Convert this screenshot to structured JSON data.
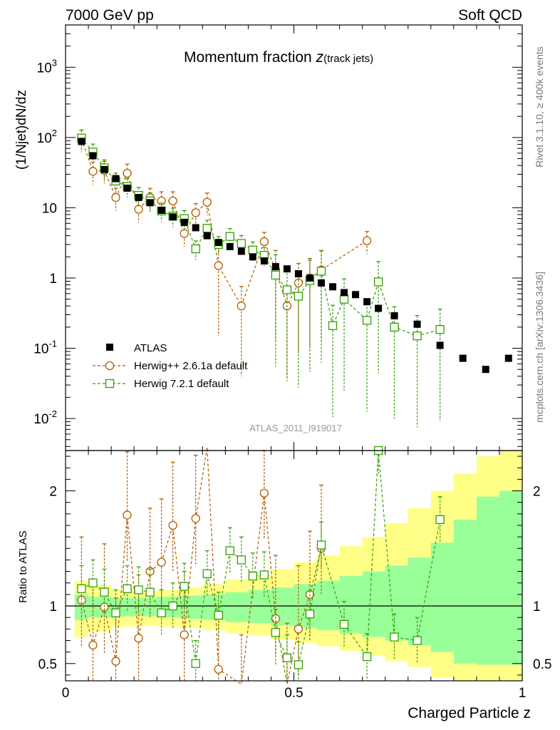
{
  "header": {
    "left": "7000 GeV pp",
    "right": "Soft QCD"
  },
  "side_labels": {
    "rivet": "Rivet 3.1.10, ≥ 400k events",
    "ref": "mcplots.cern.ch [arXiv:1306.3436]"
  },
  "chart_data": {
    "type": "scatter",
    "title_main": "Momentum fraction ",
    "title_sym": "z",
    "title_sub": "(track jets)",
    "watermark": "ATLAS_2011_I919017",
    "xlabel": "Charged Particle z",
    "ylabel_top": "(1/Njet)dN/dz",
    "ylabel_bottom": "Ratio to ATLAS",
    "xlim": [
      0,
      1
    ],
    "ylim_top": [
      0.0035,
      4000
    ],
    "ylim_ratio": [
      0.35,
      2.35
    ],
    "x_ticks": [
      "0",
      "0.5",
      "1"
    ],
    "y_ticks_top": [
      {
        "base": "10",
        "exp": "-2"
      },
      {
        "base": "10",
        "exp": "-1"
      },
      {
        "base": "1",
        "exp": ""
      },
      {
        "base": "10",
        "exp": ""
      },
      {
        "base": "10",
        "exp": "2"
      },
      {
        "base": "10",
        "exp": "3"
      }
    ],
    "y_ticks_ratio": [
      "0.5",
      "1",
      "2"
    ],
    "legend": [
      {
        "label": "ATLAS",
        "color": "#000000",
        "marker": "filled-square"
      },
      {
        "label": "Herwig++ 2.6.1a default",
        "color": "#b35c00",
        "marker": "open-circle"
      },
      {
        "label": "Herwig 7.2.1 default",
        "color": "#33a000",
        "marker": "open-square"
      }
    ],
    "atlas": {
      "x": [
        0.035,
        0.06,
        0.085,
        0.11,
        0.135,
        0.16,
        0.185,
        0.21,
        0.235,
        0.26,
        0.285,
        0.31,
        0.335,
        0.36,
        0.385,
        0.41,
        0.435,
        0.46,
        0.485,
        0.51,
        0.535,
        0.56,
        0.585,
        0.61,
        0.635,
        0.66,
        0.685,
        0.72,
        0.77,
        0.82,
        0.87,
        0.92,
        0.97
      ],
      "y": [
        88,
        55,
        35,
        26,
        19,
        14,
        11.8,
        9.2,
        7.4,
        6.2,
        5.2,
        4.0,
        3.2,
        2.8,
        2.4,
        2.0,
        1.75,
        1.45,
        1.35,
        1.15,
        1.0,
        0.85,
        0.75,
        0.62,
        0.58,
        0.46,
        0.37,
        0.29,
        0.22,
        0.11,
        0.072,
        0.05,
        0.072
      ]
    },
    "herwigpp": {
      "x": [
        0.035,
        0.06,
        0.085,
        0.11,
        0.135,
        0.16,
        0.185,
        0.21,
        0.235,
        0.26,
        0.285,
        0.31,
        0.335,
        0.385,
        0.435,
        0.46,
        0.485,
        0.51,
        0.535,
        0.56,
        0.66
      ],
      "y": [
        95,
        33,
        34,
        14,
        31,
        9.5,
        14,
        12.5,
        12.5,
        4.3,
        8.5,
        12,
        1.5,
        0.4,
        3.3,
        1.3,
        0.4,
        0.85,
        1.0,
        1.3,
        3.4
      ]
    },
    "herwig7": {
      "x": [
        0.035,
        0.06,
        0.085,
        0.11,
        0.135,
        0.16,
        0.185,
        0.21,
        0.235,
        0.26,
        0.285,
        0.31,
        0.335,
        0.36,
        0.385,
        0.41,
        0.435,
        0.46,
        0.485,
        0.51,
        0.535,
        0.56,
        0.585,
        0.61,
        0.66,
        0.685,
        0.72,
        0.77,
        0.82
      ],
      "y": [
        98,
        62,
        37,
        24,
        20,
        15,
        12.5,
        9.0,
        7.6,
        7.0,
        2.6,
        5.1,
        3.0,
        3.9,
        3.1,
        2.5,
        2.1,
        1.1,
        0.68,
        0.55,
        0.92,
        1.25,
        0.21,
        0.5,
        0.25,
        0.88,
        0.2,
        0.15,
        0.185
      ]
    },
    "ratio_herwigpp": {
      "x": [
        0.035,
        0.06,
        0.085,
        0.11,
        0.135,
        0.16,
        0.185,
        0.21,
        0.235,
        0.26,
        0.285,
        0.31,
        0.335,
        0.385,
        0.435,
        0.46,
        0.485,
        0.51,
        0.535,
        0.56
      ],
      "y": [
        1.05,
        0.66,
        0.99,
        0.52,
        1.79,
        0.72,
        1.3,
        1.38,
        1.7,
        0.75,
        1.76,
        2.9,
        0.45,
        0.2,
        1.98,
        0.89,
        0.3,
        0.8,
        1.1,
        1.5
      ]
    },
    "ratio_herwig7": {
      "x": [
        0.035,
        0.06,
        0.085,
        0.11,
        0.135,
        0.16,
        0.185,
        0.21,
        0.235,
        0.26,
        0.285,
        0.31,
        0.335,
        0.36,
        0.385,
        0.41,
        0.435,
        0.46,
        0.485,
        0.51,
        0.535,
        0.56,
        0.61,
        0.66,
        0.685,
        0.72,
        0.77,
        0.82
      ],
      "y": [
        1.15,
        1.2,
        1.12,
        0.94,
        1.15,
        1.14,
        1.12,
        0.94,
        1.0,
        1.17,
        0.5,
        1.28,
        0.92,
        1.48,
        1.4,
        1.26,
        1.27,
        0.77,
        0.55,
        0.49,
        0.93,
        1.53,
        0.84,
        0.56,
        2.35,
        0.73,
        0.7,
        1.75
      ]
    },
    "band_edges": [
      0.02,
      0.05,
      0.1,
      0.15,
      0.2,
      0.25,
      0.3,
      0.35,
      0.4,
      0.45,
      0.5,
      0.55,
      0.6,
      0.65,
      0.7,
      0.75,
      0.8,
      0.85,
      0.9,
      0.95,
      1.0
    ],
    "band_green": [
      {
        "lo": 0.88,
        "hi": 1.1
      },
      {
        "lo": 0.9,
        "hi": 1.08
      },
      {
        "lo": 0.91,
        "hi": 1.07
      },
      {
        "lo": 0.91,
        "hi": 1.07
      },
      {
        "lo": 0.9,
        "hi": 1.08
      },
      {
        "lo": 0.89,
        "hi": 1.09
      },
      {
        "lo": 0.88,
        "hi": 1.1
      },
      {
        "lo": 0.86,
        "hi": 1.12
      },
      {
        "lo": 0.85,
        "hi": 1.14
      },
      {
        "lo": 0.83,
        "hi": 1.16
      },
      {
        "lo": 0.81,
        "hi": 1.19
      },
      {
        "lo": 0.79,
        "hi": 1.22
      },
      {
        "lo": 0.76,
        "hi": 1.26
      },
      {
        "lo": 0.73,
        "hi": 1.3
      },
      {
        "lo": 0.7,
        "hi": 1.35
      },
      {
        "lo": 0.66,
        "hi": 1.42
      },
      {
        "lo": 0.6,
        "hi": 1.55
      },
      {
        "lo": 0.5,
        "hi": 1.75
      },
      {
        "lo": 0.49,
        "hi": 1.95
      },
      {
        "lo": 0.49,
        "hi": 2.0
      }
    ],
    "band_yellow": [
      {
        "lo": 0.73,
        "hi": 1.22
      },
      {
        "lo": 0.78,
        "hi": 1.18
      },
      {
        "lo": 0.82,
        "hi": 1.14
      },
      {
        "lo": 0.83,
        "hi": 1.13
      },
      {
        "lo": 0.82,
        "hi": 1.14
      },
      {
        "lo": 0.81,
        "hi": 1.16
      },
      {
        "lo": 0.79,
        "hi": 1.19
      },
      {
        "lo": 0.76,
        "hi": 1.23
      },
      {
        "lo": 0.74,
        "hi": 1.27
      },
      {
        "lo": 0.71,
        "hi": 1.32
      },
      {
        "lo": 0.68,
        "hi": 1.38
      },
      {
        "lo": 0.65,
        "hi": 1.44
      },
      {
        "lo": 0.61,
        "hi": 1.52
      },
      {
        "lo": 0.57,
        "hi": 1.6
      },
      {
        "lo": 0.52,
        "hi": 1.72
      },
      {
        "lo": 0.47,
        "hi": 1.85
      },
      {
        "lo": 0.38,
        "hi": 2.0
      },
      {
        "lo": 0.3,
        "hi": 2.15
      },
      {
        "lo": 0.3,
        "hi": 2.3
      },
      {
        "lo": 0.3,
        "hi": 2.35
      }
    ],
    "colors": {
      "band_green": "#99ff99",
      "band_yellow": "#ffff88",
      "atlas": "#000000",
      "herwigpp": "#b35c00",
      "herwig7": "#33a000",
      "watermark": "#999999",
      "side": "#777777"
    }
  }
}
